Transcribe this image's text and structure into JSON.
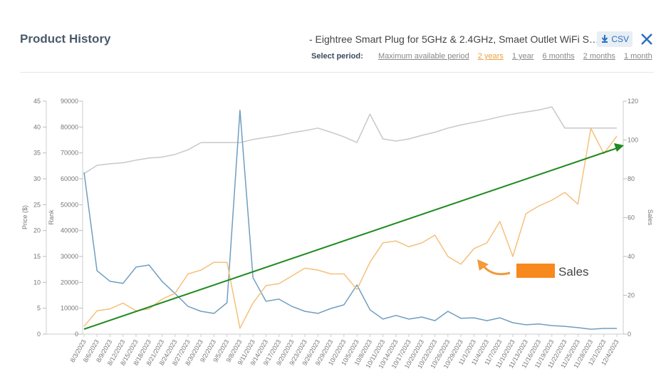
{
  "header": {
    "title": "Product History",
    "product": "- Eightree Smart Plug for 5GHz & 2.4GHz, Smaet Outlet WiFi S…",
    "csv": "CSV",
    "period_label": "Select period:",
    "periods": [
      "Maximum available period",
      "2 years",
      "1 year",
      "6 months",
      "2 months",
      "1 month"
    ],
    "active_period": 1
  },
  "chart_data": {
    "type": "line",
    "ylabel": "Price ($)",
    "y3label": "Rank",
    "y2label": "Sales",
    "categories": [
      "8/3/2023",
      "8/6/2023",
      "8/9/2023",
      "8/12/2023",
      "8/15/2023",
      "8/18/2023",
      "8/21/2023",
      "8/24/2023",
      "8/27/2023",
      "8/30/2023",
      "9/2/2023",
      "9/5/2023",
      "9/8/2023",
      "9/11/2023",
      "9/14/2023",
      "9/17/2023",
      "9/20/2023",
      "9/23/2023",
      "9/26/2023",
      "9/29/2023",
      "10/2/2023",
      "10/5/2023",
      "10/8/2023",
      "10/11/2023",
      "10/14/2023",
      "10/17/2023",
      "10/20/2023",
      "10/23/2023",
      "10/26/2023",
      "10/29/2023",
      "11/1/2023",
      "11/4/2023",
      "11/7/2023",
      "11/10/2023",
      "11/13/2023",
      "11/16/2023",
      "11/19/2023",
      "11/22/2023",
      "11/25/2023",
      "11/28/2023",
      "12/1/2023",
      "12/4/2023"
    ],
    "ylim": [
      0,
      45
    ],
    "yticks": [
      0,
      5,
      10,
      15,
      20,
      25,
      30,
      35,
      40,
      45
    ],
    "y3lim": [
      0,
      90000
    ],
    "y3ticks": [
      0,
      10000,
      20000,
      30000,
      40000,
      50000,
      60000,
      70000,
      80000,
      90000
    ],
    "y2lim": [
      0,
      120
    ],
    "y2ticks": [
      0,
      20,
      40,
      60,
      80,
      100,
      120
    ],
    "series": [
      {
        "color": "#c8c8c8",
        "axis": "y",
        "values": [
          31,
          32.6,
          32.9,
          33.1,
          33.6,
          34,
          34.2,
          34.7,
          35.6,
          37,
          37,
          37,
          37,
          37.6,
          38,
          38.4,
          38.9,
          39.3,
          39.8,
          39,
          38.1,
          37,
          42.5,
          37.7,
          37.3,
          37.7,
          38.4,
          39,
          39.8,
          40.4,
          40.9,
          41.4,
          42,
          42.5,
          42.9,
          43.3,
          43.9,
          39.8,
          39.8,
          39.8,
          39.8,
          39.8
        ]
      },
      {
        "color": "#6f9ec0",
        "axis": "y3",
        "values": [
          62500,
          24500,
          20400,
          19600,
          25900,
          26700,
          20400,
          15700,
          10700,
          8800,
          8000,
          12100,
          86500,
          21800,
          12700,
          13500,
          10700,
          8800,
          8000,
          9900,
          11300,
          19000,
          9400,
          5800,
          7200,
          5800,
          6600,
          5200,
          8800,
          6100,
          6300,
          5200,
          6300,
          4400,
          3600,
          3900,
          3300,
          3000,
          2500,
          1900,
          2200,
          2200
        ]
      },
      {
        "name": "Sales",
        "color": "#f5c07a",
        "axis": "y2",
        "values": [
          4,
          12,
          13,
          16,
          12,
          13,
          18,
          21,
          31,
          33,
          37,
          37,
          3,
          16,
          25,
          26,
          30,
          34,
          33,
          31,
          31,
          23,
          37,
          47,
          48,
          45,
          47,
          51,
          40,
          36,
          44,
          47,
          58,
          40,
          62,
          66,
          69,
          73,
          67,
          106,
          93,
          102
        ]
      }
    ]
  }
}
